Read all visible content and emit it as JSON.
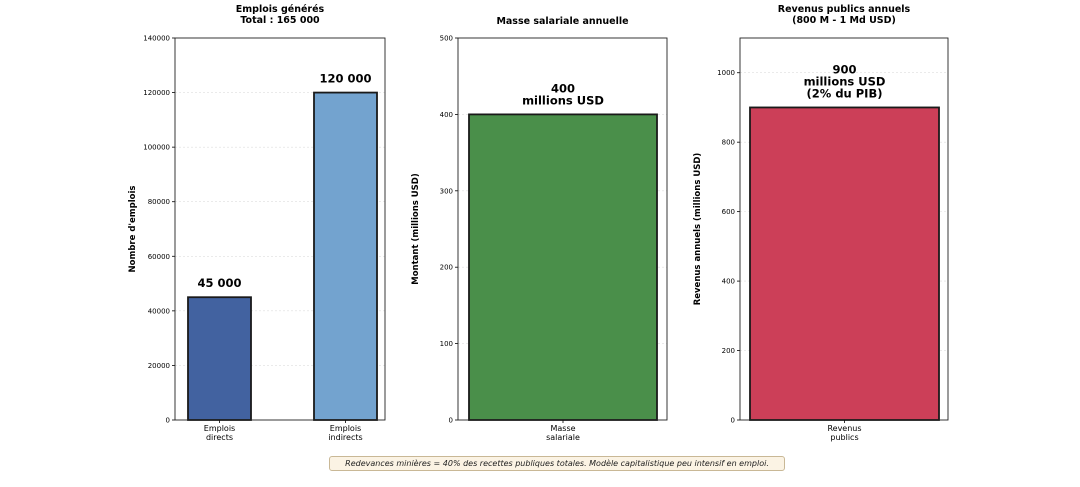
{
  "chart_data": [
    {
      "type": "bar",
      "title": "Emplois générés\nTotal : 165 000",
      "ylabel": "Nombre d'emplois",
      "ylim": [
        0,
        140000
      ],
      "yticks": [
        0,
        20000,
        40000,
        60000,
        80000,
        100000,
        120000,
        140000
      ],
      "categories": [
        "Emplois\ndirects",
        "Emplois\nindirects"
      ],
      "values": [
        45000,
        120000
      ],
      "labels": [
        "45 000",
        "120 000"
      ],
      "colors": [
        "#4262a0",
        "#73a3cf"
      ]
    },
    {
      "type": "bar",
      "title": "Masse salariale annuelle",
      "ylabel": "Montant (millions USD)",
      "ylim": [
        0,
        500
      ],
      "yticks": [
        0,
        100,
        200,
        300,
        400,
        500
      ],
      "categories": [
        "Masse\nsalariale"
      ],
      "values": [
        400
      ],
      "labels": [
        "400\nmillions USD"
      ],
      "colors": [
        "#4a8f4a"
      ]
    },
    {
      "type": "bar",
      "title": "Revenus publics annuels\n(800 M - 1 Md USD)",
      "ylabel": "Revenus annuels (millions USD)",
      "ylim": [
        0,
        1100
      ],
      "yticks": [
        0,
        200,
        400,
        600,
        800,
        1000
      ],
      "categories": [
        "Revenus\npublics"
      ],
      "values": [
        900
      ],
      "labels": [
        "900\nmillions USD\n(2% du PIB)"
      ],
      "colors": [
        "#cc3f58"
      ]
    }
  ],
  "note": "Redevances minières = 40% des recettes publiques totales. Modèle capitalistique peu intensif en emploi."
}
